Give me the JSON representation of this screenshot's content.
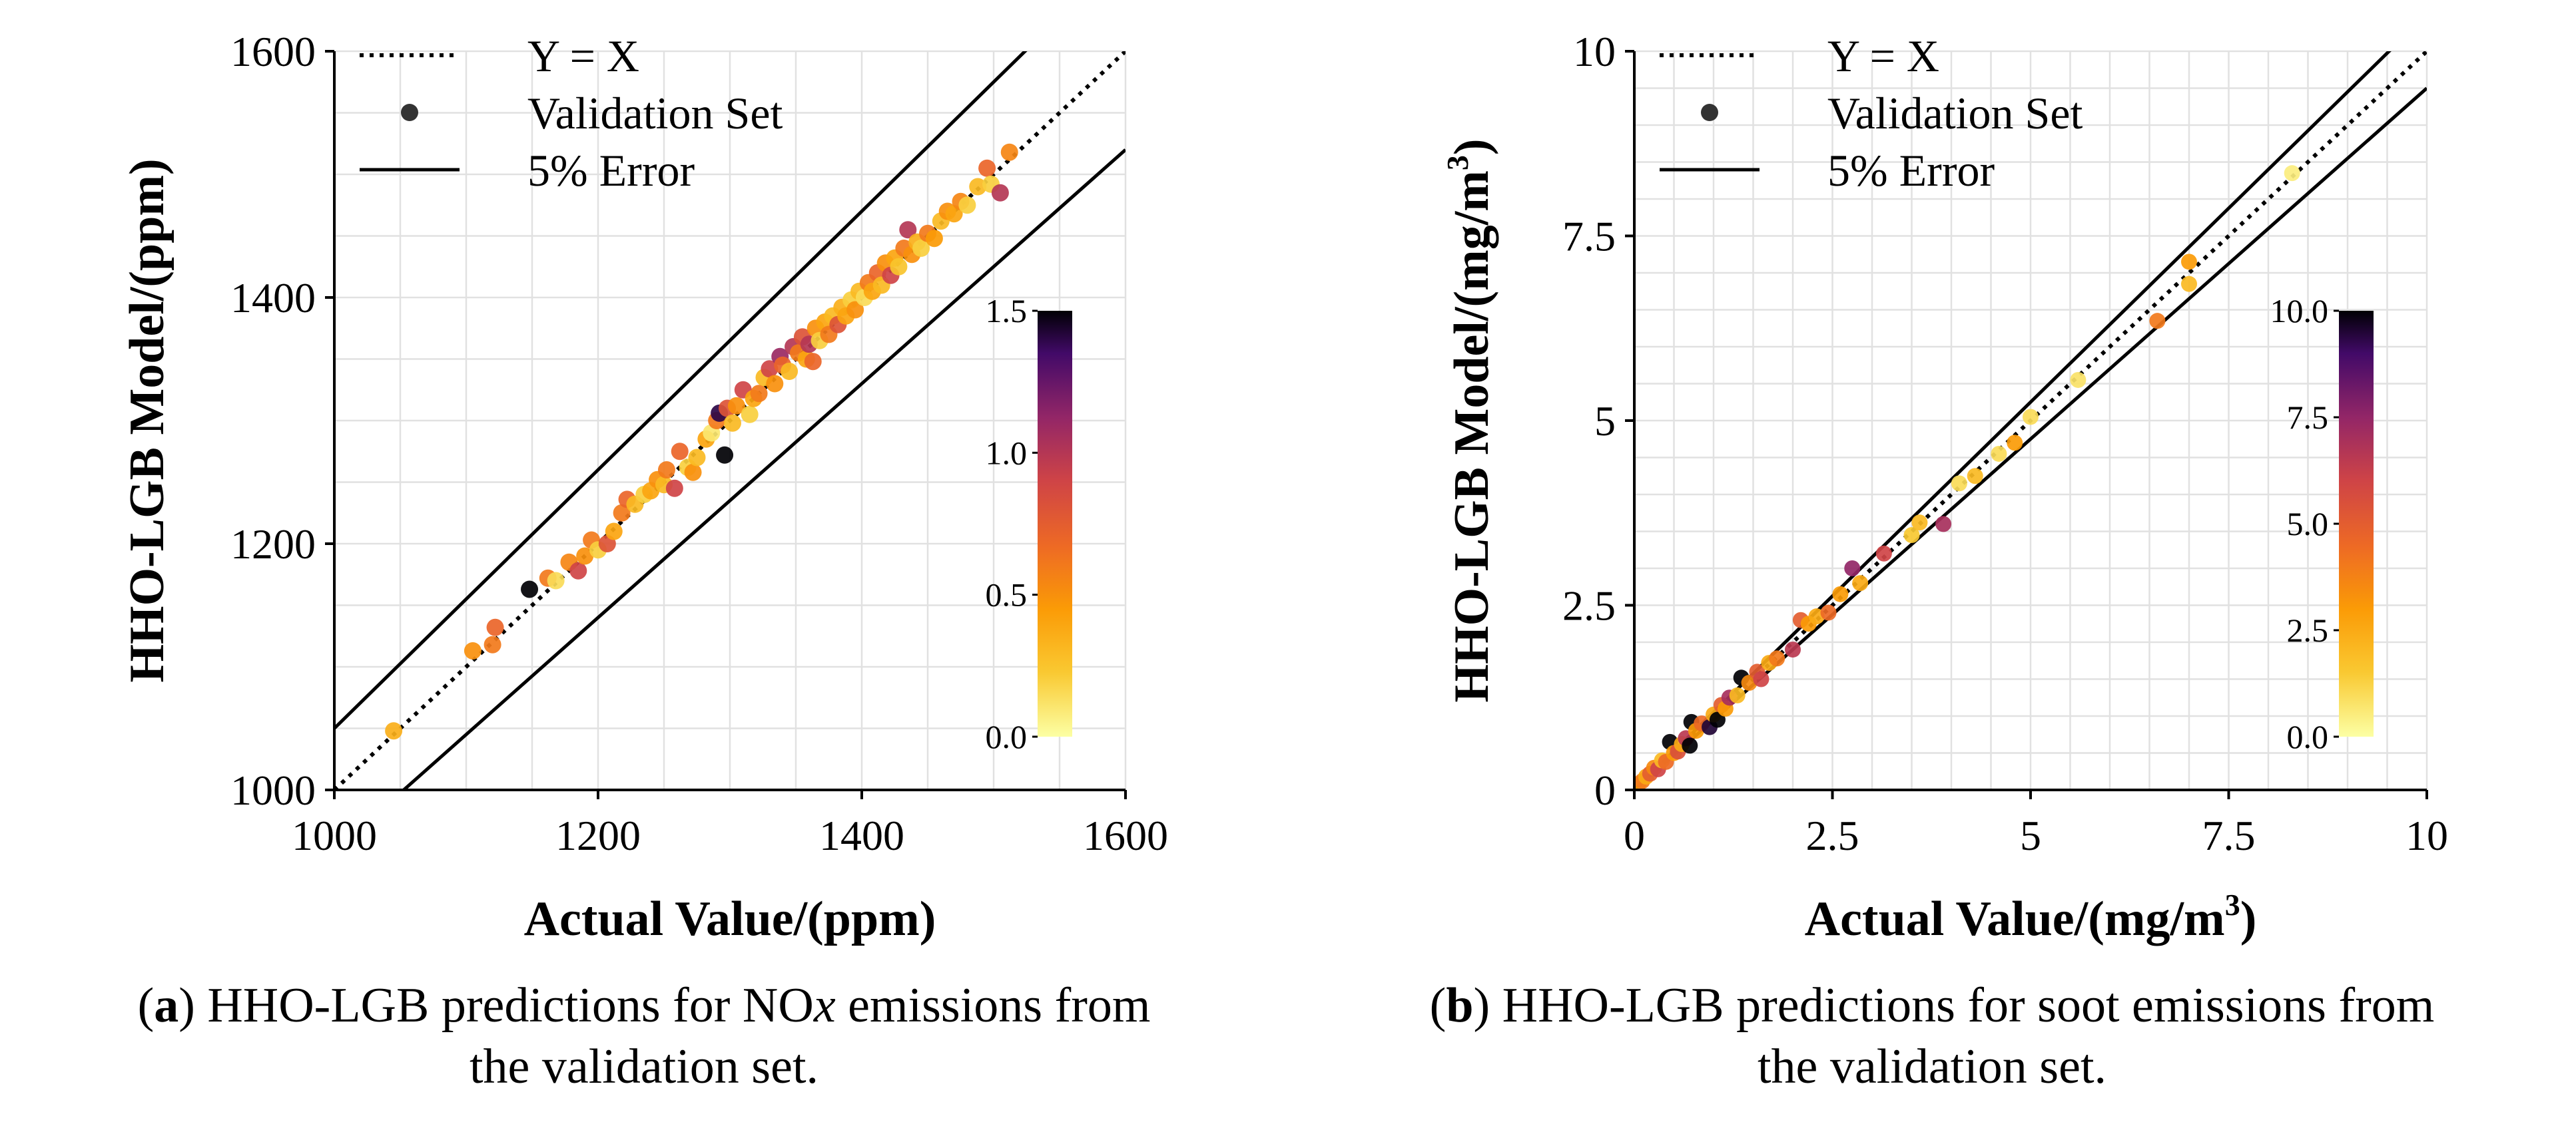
{
  "chart_data": [
    {
      "type": "scatter",
      "xlabel": "Actual Value/(ppm)",
      "ylabel": "HHO-LGB Model/(ppm)",
      "xlim": [
        1000,
        1600
      ],
      "ylim": [
        1000,
        1600
      ],
      "xticks": [
        "1000",
        "1200",
        "1400",
        "1600"
      ],
      "yticks": [
        "1000",
        "1200",
        "1400",
        "1600"
      ],
      "grid": true,
      "legend_position": "top-left",
      "legend": [
        "Y = X",
        "Validation Set",
        "5% Error"
      ],
      "colorbar": {
        "min": 0.0,
        "max": 1.5,
        "ticks": [
          "0.0",
          "0.5",
          "1.0",
          "1.5"
        ],
        "colormap": "inferno-reversed"
      },
      "error_fraction": 0.05,
      "points": [
        [
          1045,
          1048,
          0.35
        ],
        [
          1105,
          1113,
          0.5
        ],
        [
          1120,
          1118,
          0.6
        ],
        [
          1122,
          1132,
          0.7
        ],
        [
          1148,
          1163,
          1.5
        ],
        [
          1162,
          1172,
          0.6
        ],
        [
          1168,
          1170,
          0.15
        ],
        [
          1178,
          1185,
          0.55
        ],
        [
          1185,
          1178,
          0.9
        ],
        [
          1190,
          1190,
          0.5
        ],
        [
          1195,
          1203,
          0.6
        ],
        [
          1200,
          1195,
          0.2
        ],
        [
          1207,
          1200,
          0.8
        ],
        [
          1212,
          1210,
          0.4
        ],
        [
          1218,
          1225,
          0.6
        ],
        [
          1222,
          1236,
          0.7
        ],
        [
          1228,
          1232,
          0.3
        ],
        [
          1235,
          1240,
          0.2
        ],
        [
          1240,
          1243,
          0.4
        ],
        [
          1245,
          1252,
          0.5
        ],
        [
          1250,
          1248,
          0.3
        ],
        [
          1252,
          1260,
          0.6
        ],
        [
          1258,
          1245,
          0.9
        ],
        [
          1262,
          1275,
          0.7
        ],
        [
          1268,
          1262,
          0.2
        ],
        [
          1272,
          1258,
          0.5
        ],
        [
          1275,
          1270,
          0.3
        ],
        [
          1282,
          1285,
          0.4
        ],
        [
          1286,
          1290,
          0.1
        ],
        [
          1290,
          1300,
          0.6
        ],
        [
          1292,
          1306,
          1.4
        ],
        [
          1296,
          1272,
          1.5
        ],
        [
          1298,
          1310,
          0.8
        ],
        [
          1302,
          1298,
          0.3
        ],
        [
          1305,
          1312,
          0.5
        ],
        [
          1310,
          1325,
          0.9
        ],
        [
          1315,
          1305,
          0.2
        ],
        [
          1318,
          1318,
          0.4
        ],
        [
          1322,
          1322,
          0.6
        ],
        [
          1326,
          1335,
          0.3
        ],
        [
          1330,
          1342,
          0.9
        ],
        [
          1334,
          1330,
          0.5
        ],
        [
          1338,
          1352,
          1.1
        ],
        [
          1340,
          1345,
          0.7
        ],
        [
          1345,
          1340,
          0.3
        ],
        [
          1348,
          1360,
          1.0
        ],
        [
          1352,
          1355,
          0.6
        ],
        [
          1355,
          1368,
          0.8
        ],
        [
          1358,
          1350,
          0.4
        ],
        [
          1360,
          1362,
          1.0
        ],
        [
          1363,
          1348,
          0.7
        ],
        [
          1365,
          1375,
          0.5
        ],
        [
          1368,
          1365,
          0.2
        ],
        [
          1372,
          1380,
          0.4
        ],
        [
          1375,
          1370,
          0.6
        ],
        [
          1378,
          1385,
          0.3
        ],
        [
          1382,
          1378,
          0.8
        ],
        [
          1385,
          1392,
          0.35
        ],
        [
          1388,
          1385,
          0.4
        ],
        [
          1392,
          1398,
          0.2
        ],
        [
          1395,
          1390,
          0.5
        ],
        [
          1398,
          1405,
          0.3
        ],
        [
          1402,
          1400,
          0.15
        ],
        [
          1405,
          1412,
          0.6
        ],
        [
          1408,
          1405,
          0.4
        ],
        [
          1412,
          1420,
          0.7
        ],
        [
          1415,
          1410,
          0.3
        ],
        [
          1418,
          1428,
          0.5
        ],
        [
          1422,
          1418,
          0.9
        ],
        [
          1425,
          1432,
          0.4
        ],
        [
          1428,
          1425,
          0.25
        ],
        [
          1432,
          1440,
          0.6
        ],
        [
          1435,
          1455,
          1.0
        ],
        [
          1438,
          1435,
          0.5
        ],
        [
          1442,
          1445,
          0.35
        ],
        [
          1445,
          1440,
          0.2
        ],
        [
          1450,
          1452,
          0.6
        ],
        [
          1455,
          1448,
          0.45
        ],
        [
          1460,
          1462,
          0.3
        ],
        [
          1465,
          1470,
          0.5
        ],
        [
          1470,
          1468,
          0.4
        ],
        [
          1475,
          1478,
          0.55
        ],
        [
          1480,
          1475,
          0.2
        ],
        [
          1488,
          1490,
          0.3
        ],
        [
          1495,
          1505,
          0.7
        ],
        [
          1498,
          1492,
          0.2
        ],
        [
          1505,
          1485,
          1.0
        ],
        [
          1512,
          1518,
          0.55
        ]
      ]
    },
    {
      "type": "scatter",
      "xlabel": "Actual Value/(mg/m",
      "xlabel_sup": "3",
      "xlabel_end": ")",
      "ylabel": "HHO-LGB Model/(mg/m",
      "ylabel_sup": "3",
      "ylabel_end": ")",
      "xlim": [
        0,
        10
      ],
      "ylim": [
        0,
        10
      ],
      "xticks": [
        "0",
        "2.5",
        "5",
        "7.5",
        "10"
      ],
      "yticks": [
        "0",
        "2.5",
        "5",
        "7.5",
        "10"
      ],
      "grid": true,
      "legend_position": "top-left",
      "legend": [
        "Y = X",
        "Validation Set",
        "5% Error"
      ],
      "colorbar": {
        "min": 0.0,
        "max": 10.0,
        "ticks": [
          "0.0",
          "2.5",
          "5.0",
          "7.5",
          "10.0"
        ],
        "colormap": "inferno-reversed"
      },
      "error_fraction": 0.05,
      "points": [
        [
          0.05,
          0.08,
          3.0
        ],
        [
          0.1,
          0.12,
          4.0
        ],
        [
          0.15,
          0.18,
          2.5
        ],
        [
          0.2,
          0.22,
          5.0
        ],
        [
          0.25,
          0.3,
          3.5
        ],
        [
          0.3,
          0.28,
          6.0
        ],
        [
          0.35,
          0.4,
          2.0
        ],
        [
          0.4,
          0.38,
          4.5
        ],
        [
          0.45,
          0.65,
          10.0
        ],
        [
          0.5,
          0.5,
          3.0
        ],
        [
          0.55,
          0.52,
          5.5
        ],
        [
          0.6,
          0.62,
          2.5
        ],
        [
          0.65,
          0.7,
          6.5
        ],
        [
          0.7,
          0.6,
          10.0
        ],
        [
          0.72,
          0.92,
          10.0
        ],
        [
          0.78,
          0.8,
          3.0
        ],
        [
          0.85,
          0.9,
          4.5
        ],
        [
          0.95,
          0.85,
          9.5
        ],
        [
          1.0,
          1.02,
          2.5
        ],
        [
          1.05,
          0.95,
          10.0
        ],
        [
          1.1,
          1.15,
          5.0
        ],
        [
          1.15,
          1.1,
          3.0
        ],
        [
          1.2,
          1.25,
          7.0
        ],
        [
          1.3,
          1.28,
          2.0
        ],
        [
          1.35,
          1.52,
          10.0
        ],
        [
          1.45,
          1.45,
          3.5
        ],
        [
          1.55,
          1.6,
          5.0
        ],
        [
          1.6,
          1.5,
          6.0
        ],
        [
          1.7,
          1.72,
          2.5
        ],
        [
          1.8,
          1.78,
          4.0
        ],
        [
          2.0,
          1.9,
          6.5
        ],
        [
          2.1,
          2.3,
          5.0
        ],
        [
          2.2,
          2.25,
          3.0
        ],
        [
          2.3,
          2.35,
          2.5
        ],
        [
          2.45,
          2.4,
          4.5
        ],
        [
          2.6,
          2.65,
          3.0
        ],
        [
          2.75,
          3.0,
          7.5
        ],
        [
          2.85,
          2.8,
          2.5
        ],
        [
          3.15,
          3.2,
          6.0
        ],
        [
          3.5,
          3.45,
          1.5
        ],
        [
          3.6,
          3.62,
          2.0
        ],
        [
          3.9,
          3.6,
          7.0
        ],
        [
          4.1,
          4.15,
          1.0
        ],
        [
          4.3,
          4.25,
          2.0
        ],
        [
          4.6,
          4.55,
          1.0
        ],
        [
          4.8,
          4.7,
          3.0
        ],
        [
          5.0,
          5.05,
          1.0
        ],
        [
          5.6,
          5.55,
          0.8
        ],
        [
          6.6,
          6.35,
          4.0
        ],
        [
          7.0,
          7.15,
          3.0
        ],
        [
          7.0,
          6.85,
          2.0
        ],
        [
          8.3,
          8.35,
          0.5
        ]
      ]
    }
  ],
  "captions": [
    {
      "tag": "a",
      "before": ") HHO-LGB predictions for NO",
      "italic": "x",
      "after": " emissions from",
      "line2": "the validation set."
    },
    {
      "tag": "b",
      "before": ") HHO-LGB predictions for soot emissions from",
      "italic": "",
      "after": "",
      "line2": "the validation set."
    }
  ]
}
